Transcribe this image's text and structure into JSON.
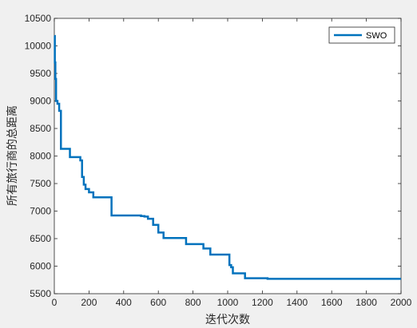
{
  "chart_data": {
    "type": "line",
    "xlabel": "迭代次数",
    "ylabel": "所有旅行商的总距离",
    "xlim": [
      0,
      2000
    ],
    "ylim": [
      5500,
      10500
    ],
    "xticks": [
      0,
      200,
      400,
      600,
      800,
      1000,
      1200,
      1400,
      1600,
      1800,
      2000
    ],
    "yticks": [
      5500,
      6000,
      6500,
      7000,
      7500,
      8000,
      8500,
      9000,
      9500,
      10000,
      10500
    ],
    "grid": false,
    "legend": {
      "position": "top-right",
      "entries": [
        "SWO"
      ]
    },
    "series": [
      {
        "name": "SWO",
        "color": "#0072BD",
        "step": true,
        "x": [
          0,
          3,
          6,
          10,
          18,
          28,
          38,
          90,
          150,
          160,
          170,
          180,
          200,
          225,
          330,
          500,
          520,
          540,
          570,
          600,
          630,
          760,
          860,
          900,
          1010,
          1020,
          1030,
          1100,
          1230,
          2000
        ],
        "y": [
          10180,
          9700,
          9400,
          9000,
          8950,
          8820,
          8130,
          7980,
          7920,
          7620,
          7480,
          7400,
          7340,
          7250,
          6920,
          6910,
          6900,
          6860,
          6750,
          6610,
          6510,
          6400,
          6320,
          6210,
          6020,
          5980,
          5870,
          5780,
          5770,
          5770
        ]
      }
    ]
  },
  "colors": {
    "background": "#f0f0f0",
    "axes_background": "#ffffff",
    "axes": "#262626",
    "line": "#0072BD"
  }
}
